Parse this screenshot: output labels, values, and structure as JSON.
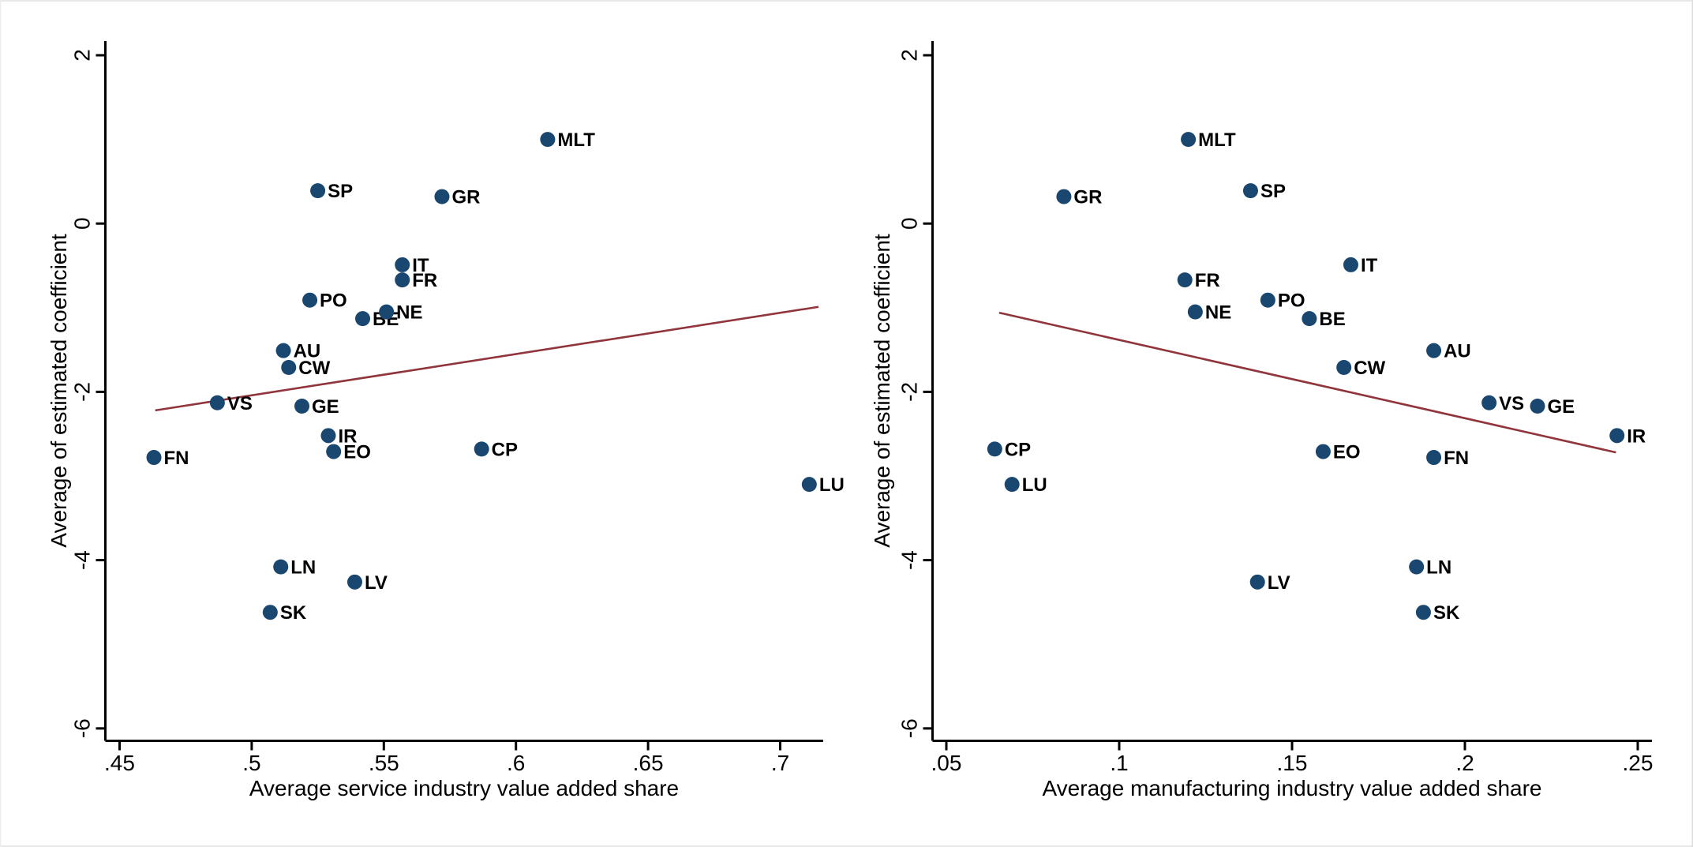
{
  "window": {
    "background": "#ffffff",
    "edge_border_color": "#e8e8e8"
  },
  "colors": {
    "point": "#1a476f",
    "point_label": "#1a476f",
    "fit_line": "#90353b",
    "axis": "#000000"
  },
  "chart_data": [
    {
      "type": "scatter",
      "title": "",
      "xlabel": "Average service industry value added share",
      "ylabel": "Average of estimated coefficient",
      "xlim": [
        0.445,
        0.716
      ],
      "ylim": [
        -6.15,
        2.17
      ],
      "grid": false,
      "legend": "none",
      "x_ticks": [
        {
          "v": 0.45,
          "label": ".45"
        },
        {
          "v": 0.5,
          "label": ".5"
        },
        {
          "v": 0.55,
          "label": ".55"
        },
        {
          "v": 0.6,
          "label": ".6"
        },
        {
          "v": 0.65,
          "label": ".65"
        },
        {
          "v": 0.7,
          "label": ".7"
        }
      ],
      "y_ticks": [
        {
          "v": 2,
          "label": "2"
        },
        {
          "v": 0,
          "label": "0"
        },
        {
          "v": -2,
          "label": "-2"
        },
        {
          "v": -4,
          "label": "-4"
        },
        {
          "v": -6,
          "label": "-6"
        }
      ],
      "points": [
        {
          "label": "MLT",
          "x": 0.612,
          "y": 1.0
        },
        {
          "label": "SP",
          "x": 0.525,
          "y": 0.39
        },
        {
          "label": "GR",
          "x": 0.572,
          "y": 0.32
        },
        {
          "label": "IT",
          "x": 0.557,
          "y": -0.49
        },
        {
          "label": "FR",
          "x": 0.557,
          "y": -0.67
        },
        {
          "label": "PO",
          "x": 0.522,
          "y": -0.91
        },
        {
          "label": "NE",
          "x": 0.551,
          "y": -1.05
        },
        {
          "label": "BE",
          "x": 0.542,
          "y": -1.13
        },
        {
          "label": "AU",
          "x": 0.512,
          "y": -1.51
        },
        {
          "label": "CW",
          "x": 0.514,
          "y": -1.71
        },
        {
          "label": "VS",
          "x": 0.487,
          "y": -2.13
        },
        {
          "label": "GE",
          "x": 0.519,
          "y": -2.17
        },
        {
          "label": "IR",
          "x": 0.529,
          "y": -2.52
        },
        {
          "label": "EO",
          "x": 0.531,
          "y": -2.71
        },
        {
          "label": "FN",
          "x": 0.463,
          "y": -2.78
        },
        {
          "label": "CP",
          "x": 0.587,
          "y": -2.68
        },
        {
          "label": "LU",
          "x": 0.711,
          "y": -3.1
        },
        {
          "label": "LN",
          "x": 0.511,
          "y": -4.08
        },
        {
          "label": "LV",
          "x": 0.539,
          "y": -4.26
        },
        {
          "label": "SK",
          "x": 0.507,
          "y": -4.62
        }
      ],
      "fit_line": {
        "x1": 0.4635,
        "y1": -2.22,
        "x2": 0.7145,
        "y2": -0.99
      }
    },
    {
      "type": "scatter",
      "title": "",
      "xlabel": "Average manufacturing industry value added share",
      "ylabel": "Average of estimated coefficient",
      "xlim": [
        0.046,
        0.252
      ],
      "ylim": [
        -6.15,
        2.17
      ],
      "grid": false,
      "legend": "none",
      "x_ticks": [
        {
          "v": 0.05,
          "label": ".05"
        },
        {
          "v": 0.1,
          "label": ".1"
        },
        {
          "v": 0.15,
          "label": ".15"
        },
        {
          "v": 0.2,
          "label": ".2"
        },
        {
          "v": 0.25,
          "label": ".25"
        }
      ],
      "y_ticks": [
        {
          "v": 2,
          "label": "2"
        },
        {
          "v": 0,
          "label": "0"
        },
        {
          "v": -2,
          "label": "-2"
        },
        {
          "v": -4,
          "label": "-4"
        },
        {
          "v": -6,
          "label": "-6"
        }
      ],
      "points": [
        {
          "label": "MLT",
          "x": 0.12,
          "y": 1.0
        },
        {
          "label": "SP",
          "x": 0.138,
          "y": 0.39
        },
        {
          "label": "GR",
          "x": 0.084,
          "y": 0.32
        },
        {
          "label": "IT",
          "x": 0.167,
          "y": -0.49
        },
        {
          "label": "FR",
          "x": 0.119,
          "y": -0.67
        },
        {
          "label": "PO",
          "x": 0.143,
          "y": -0.91
        },
        {
          "label": "NE",
          "x": 0.122,
          "y": -1.05
        },
        {
          "label": "BE",
          "x": 0.155,
          "y": -1.13
        },
        {
          "label": "AU",
          "x": 0.191,
          "y": -1.51
        },
        {
          "label": "CW",
          "x": 0.165,
          "y": -1.71
        },
        {
          "label": "VS",
          "x": 0.207,
          "y": -2.13
        },
        {
          "label": "GE",
          "x": 0.221,
          "y": -2.17
        },
        {
          "label": "IR",
          "x": 0.244,
          "y": -2.52
        },
        {
          "label": "EO",
          "x": 0.159,
          "y": -2.71
        },
        {
          "label": "FN",
          "x": 0.191,
          "y": -2.78
        },
        {
          "label": "CP",
          "x": 0.064,
          "y": -2.68
        },
        {
          "label": "LU",
          "x": 0.069,
          "y": -3.1
        },
        {
          "label": "LN",
          "x": 0.186,
          "y": -4.08
        },
        {
          "label": "LV",
          "x": 0.14,
          "y": -4.26
        },
        {
          "label": "SK",
          "x": 0.188,
          "y": -4.62
        }
      ],
      "fit_line": {
        "x1": 0.0653,
        "y1": -1.06,
        "x2": 0.2437,
        "y2": -2.72
      }
    }
  ]
}
